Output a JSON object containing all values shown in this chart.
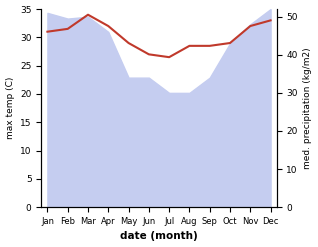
{
  "months": [
    "Jan",
    "Feb",
    "Mar",
    "Apr",
    "May",
    "Jun",
    "Jul",
    "Aug",
    "Sep",
    "Oct",
    "Nov",
    "Dec"
  ],
  "month_indices": [
    0,
    1,
    2,
    3,
    4,
    5,
    6,
    7,
    8,
    9,
    10,
    11
  ],
  "temperature": [
    31.0,
    31.5,
    34.0,
    32.0,
    29.0,
    27.0,
    26.5,
    28.5,
    28.5,
    29.0,
    32.0,
    33.0
  ],
  "precipitation": [
    51.0,
    49.5,
    50.0,
    46.0,
    34.0,
    34.0,
    30.0,
    30.0,
    34.0,
    43.0,
    48.0,
    52.0
  ],
  "temp_color": "#c0392b",
  "precip_fill_color": "#c5cdf0",
  "temp_ylim": [
    0,
    35
  ],
  "precip_ylim": [
    0,
    52
  ],
  "temp_yticks": [
    0,
    5,
    10,
    15,
    20,
    25,
    30,
    35
  ],
  "precip_yticks": [
    0,
    10,
    20,
    30,
    40,
    50
  ],
  "xlabel": "date (month)",
  "ylabel_left": "max temp (C)",
  "ylabel_right": "med. precipitation (kg/m2)",
  "background_color": "#ffffff"
}
